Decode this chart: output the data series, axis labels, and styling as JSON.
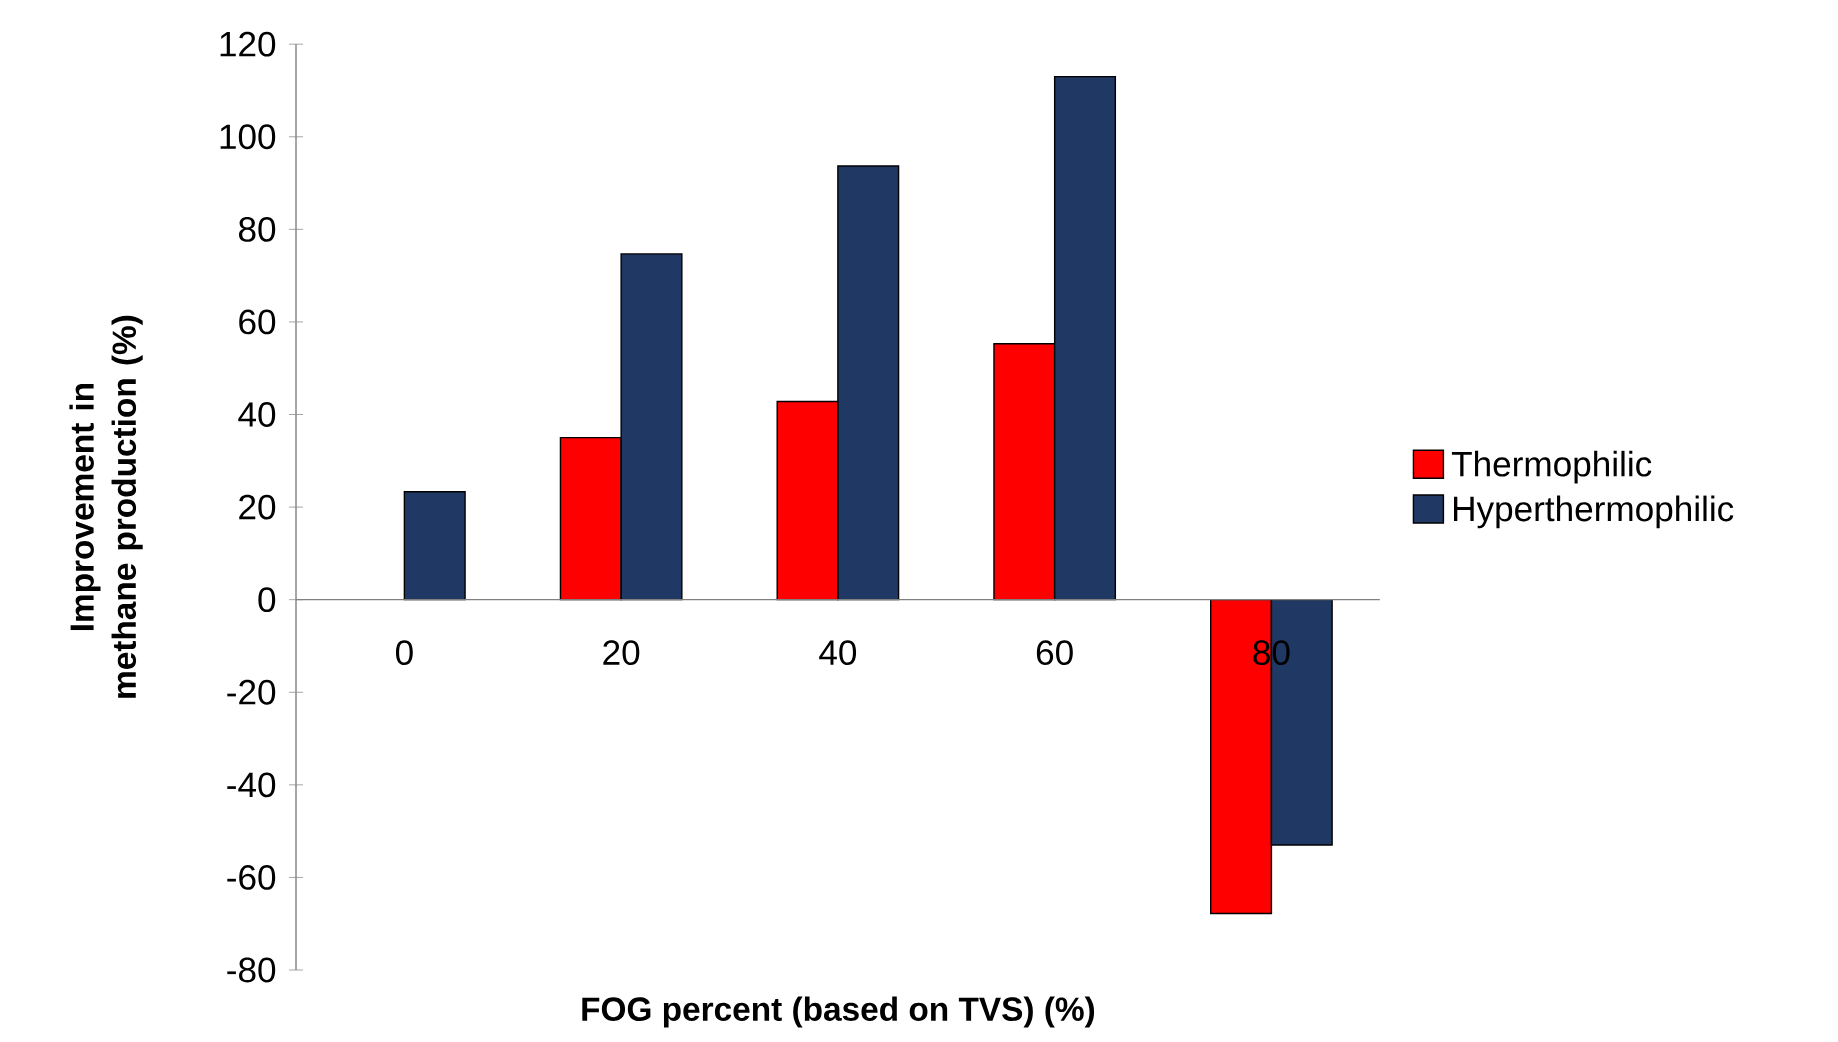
{
  "chart_data": {
    "type": "bar",
    "xlabel": "FOG percent (based on TVS) (%)",
    "ylabel": "Improvement in methane production (%)",
    "categories": [
      "0",
      "20",
      "40",
      "60",
      "80"
    ],
    "series": [
      {
        "name": "Thermophilic",
        "color": "#ff0000",
        "values": [
          0,
          35,
          42.8,
          55.3,
          -67.8
        ]
      },
      {
        "name": "Hyperthermophilic",
        "color": "#1f3864",
        "values": [
          23.3,
          74.7,
          93.7,
          113,
          -53
        ]
      }
    ],
    "ylim": [
      -80,
      120
    ],
    "yticks": [
      -80,
      -60,
      -40,
      -20,
      0,
      20,
      40,
      60,
      80,
      100,
      120
    ],
    "grid": false,
    "legend": "right"
  }
}
